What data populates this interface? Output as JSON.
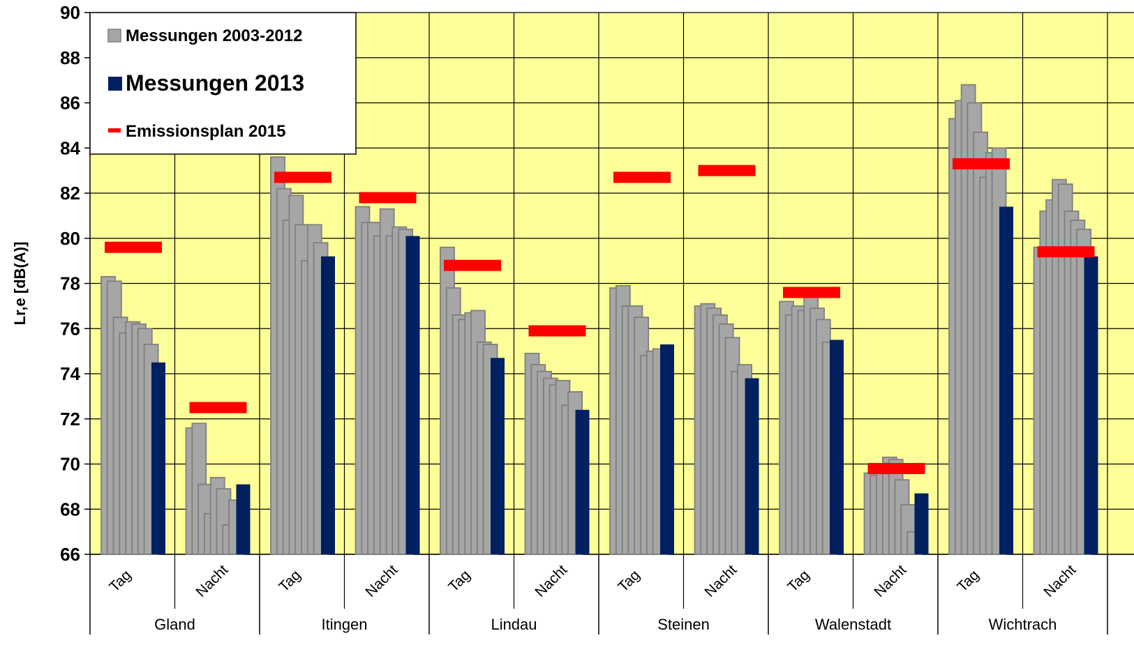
{
  "chart_data": {
    "type": "bar",
    "ylabel": "Lr,e [dB(A)]",
    "ylim": [
      66,
      90
    ],
    "yticks": [
      66,
      68,
      70,
      72,
      74,
      76,
      78,
      80,
      82,
      84,
      86,
      88,
      90
    ],
    "grid": true,
    "legend_placement": "top-left",
    "colors": {
      "plot_background": "#FFFF99",
      "historical": "#A6A6A6",
      "current": "#002060",
      "plan": "#FF0000"
    },
    "legend": [
      {
        "key": "historical",
        "label": "Messungen  2003-2012"
      },
      {
        "key": "current",
        "label": "Messungen 2013"
      },
      {
        "key": "plan",
        "label": "Emissionsplan  2015"
      }
    ],
    "groups": [
      {
        "name": "Gland",
        "subs": [
          {
            "label": "Tag",
            "historical": [
              78.3,
              78.1,
              76.5,
              75.8,
              76.3,
              76.2,
              76.0,
              75.3
            ],
            "current": 74.5,
            "plan": 79.6
          },
          {
            "label": "Nacht",
            "historical": [
              71.6,
              71.8,
              69.1,
              67.8,
              69.4,
              68.9,
              67.3,
              68.4
            ],
            "current": 69.1,
            "plan": 72.5
          }
        ]
      },
      {
        "name": "Itingen",
        "subs": [
          {
            "label": "Tag",
            "historical": [
              83.6,
              82.2,
              80.8,
              81.9,
              80.6,
              79.0,
              80.6,
              79.8
            ],
            "current": 79.2,
            "plan": 82.7
          },
          {
            "label": "Nacht",
            "historical": [
              81.4,
              80.7,
              80.7,
              80.1,
              81.3,
              80.1,
              80.5,
              80.4
            ],
            "current": 80.1,
            "plan": 81.8
          }
        ]
      },
      {
        "name": "Lindau",
        "subs": [
          {
            "label": "Tag",
            "historical": [
              79.6,
              77.8,
              76.6,
              76.4,
              76.7,
              76.8,
              75.4,
              75.3
            ],
            "current": 74.7,
            "plan": 78.8
          },
          {
            "label": "Nacht",
            "historical": [
              74.9,
              74.4,
              74.1,
              73.8,
              73.5,
              73.7,
              72.6,
              73.2
            ],
            "current": 72.4,
            "plan": 75.9
          }
        ]
      },
      {
        "name": "Steinen",
        "subs": [
          {
            "label": "Tag",
            "historical": [
              77.8,
              77.9,
              77.0,
              77.0,
              76.5,
              74.8,
              75.0,
              75.1
            ],
            "current": 75.3,
            "plan": 82.7
          },
          {
            "label": "Nacht",
            "historical": [
              77.0,
              77.1,
              76.9,
              76.6,
              76.2,
              75.6,
              74.1,
              74.4
            ],
            "current": 73.8,
            "plan": 83.0
          }
        ]
      },
      {
        "name": "Walenstadt",
        "subs": [
          {
            "label": "Tag",
            "historical": [
              77.2,
              76.6,
              77.0,
              76.8,
              77.4,
              76.9,
              76.4,
              75.4
            ],
            "current": 75.5,
            "plan": 77.6
          },
          {
            "label": "Nacht",
            "historical": [
              69.6,
              69.5,
              69.6,
              70.3,
              70.2,
              69.3,
              68.2,
              67.0
            ],
            "current": 68.7,
            "plan": 69.8
          }
        ]
      },
      {
        "name": "Wichtrach",
        "subs": [
          {
            "label": "Tag",
            "historical": [
              85.3,
              86.1,
              86.8,
              86.0,
              84.7,
              82.7,
              83.8,
              84.0
            ],
            "current": 81.4,
            "plan": 83.3
          },
          {
            "label": "Nacht",
            "historical": [
              79.6,
              81.2,
              81.7,
              82.6,
              82.4,
              81.2,
              80.8,
              80.4
            ],
            "current": 79.2,
            "plan": 79.4
          }
        ]
      }
    ]
  }
}
